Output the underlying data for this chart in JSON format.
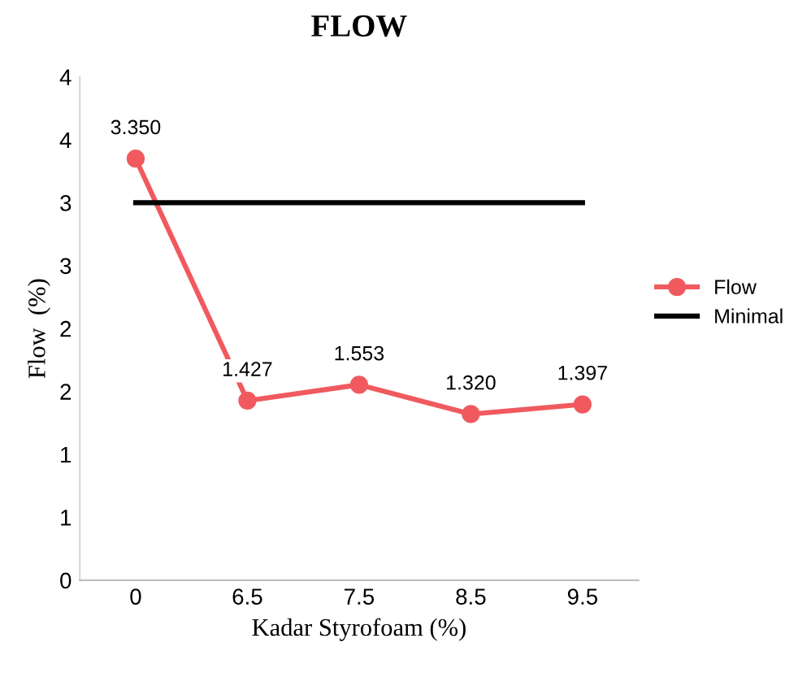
{
  "chart_data": {
    "type": "line",
    "title": "FLOW",
    "xlabel": "Kadar Styrofoam (%)",
    "ylabel": "Flow  (%)",
    "categories": [
      "0",
      "6.5",
      "7.5",
      "8.5",
      "9.5"
    ],
    "series": [
      {
        "name": "Flow",
        "color": "#f05a5f",
        "values": [
          3.35,
          1.427,
          1.553,
          1.32,
          1.397
        ],
        "value_labels": [
          "3.350",
          "1.427",
          "1.553",
          "1.320",
          "1.397"
        ],
        "marker": "circle"
      },
      {
        "name": "Minimal",
        "color": "#000000",
        "values": [
          3,
          3,
          3,
          3,
          3
        ],
        "marker": "none"
      }
    ],
    "ylim": [
      0,
      4
    ],
    "yticks": [
      0,
      {
        "value": 0.5,
        "label": "1"
      },
      1,
      {
        "value": 1.5,
        "label": "2"
      },
      2,
      {
        "value": 2.5,
        "label": "3"
      },
      3,
      {
        "value": 3.5,
        "label": "4"
      },
      4
    ],
    "grid": false,
    "legend": "right",
    "line_style": "solid"
  }
}
